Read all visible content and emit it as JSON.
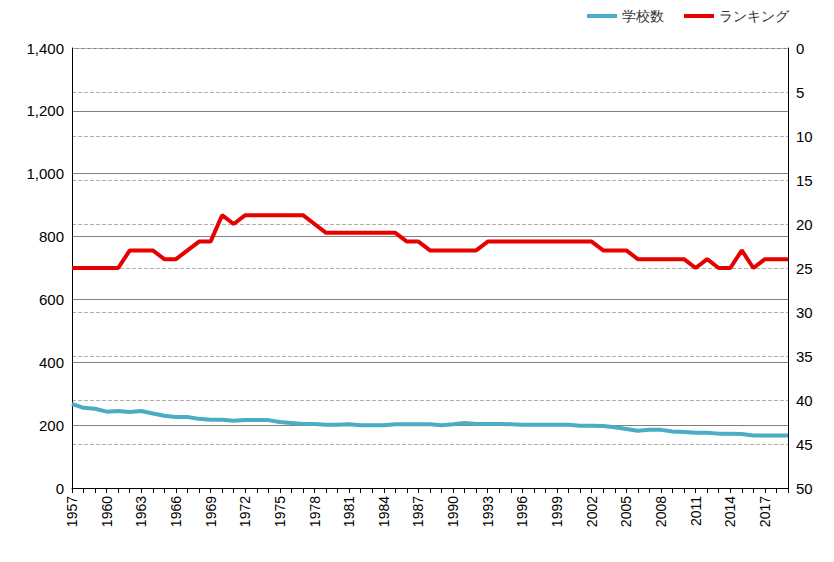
{
  "chart_data": {
    "type": "line",
    "categories": [
      1957,
      null,
      null,
      1960,
      null,
      null,
      1963,
      null,
      null,
      1966,
      null,
      null,
      1969,
      null,
      null,
      1972,
      null,
      null,
      1975,
      null,
      null,
      1978,
      null,
      null,
      1981,
      null,
      null,
      1984,
      null,
      null,
      1987,
      null,
      null,
      1990,
      null,
      null,
      1993,
      null,
      null,
      1996,
      null,
      null,
      1999,
      null,
      null,
      2002,
      null,
      null,
      2005,
      null,
      null,
      2008,
      null,
      null,
      2011,
      null,
      null,
      2014,
      null,
      null,
      2017,
      null,
      null
    ],
    "series": [
      {
        "name": "学校数",
        "color": "#4bacc6",
        "values": [
          268,
          255,
          252,
          243,
          245,
          242,
          245,
          237,
          230,
          226,
          226,
          220,
          217,
          217,
          214,
          216,
          216,
          216,
          210,
          207,
          204,
          204,
          201,
          201,
          203,
          200,
          200,
          200,
          203,
          203,
          203,
          203,
          200,
          203,
          207,
          204,
          204,
          204,
          203,
          201,
          201,
          201,
          201,
          201,
          198,
          198,
          197,
          193,
          188,
          182,
          185,
          185,
          180,
          178,
          176,
          176,
          173,
          173,
          172,
          167,
          167,
          167,
          167
        ]
      },
      {
        "name": "ランキング",
        "color": "#e60000",
        "axis": "y2",
        "values": [
          25,
          25,
          25,
          25,
          25,
          23,
          23,
          23,
          24,
          24,
          23,
          22,
          22,
          19,
          20,
          19,
          19,
          19,
          19,
          19,
          19,
          20,
          21,
          21,
          21,
          21,
          21,
          21,
          21,
          22,
          22,
          23,
          23,
          23,
          23,
          23,
          22,
          22,
          22,
          22,
          22,
          22,
          22,
          22,
          22,
          22,
          23,
          23,
          23,
          24,
          24,
          24,
          24,
          24,
          25,
          24,
          25,
          25,
          23,
          25,
          24,
          24,
          24
        ]
      }
    ],
    "ylim": [
      0,
      1400
    ],
    "yticks": [
      0,
      200,
      400,
      600,
      800,
      {
        "value": 1000,
        "label": "1,000"
      },
      {
        "value": 1200,
        "label": "1,200"
      },
      {
        "value": 1400,
        "label": "1,400"
      }
    ],
    "y2lim": [
      0,
      50
    ],
    "y2ticks": [
      0,
      5,
      10,
      15,
      20,
      25,
      30,
      35,
      40,
      45,
      50
    ],
    "grid": true,
    "legend": "top-right"
  }
}
